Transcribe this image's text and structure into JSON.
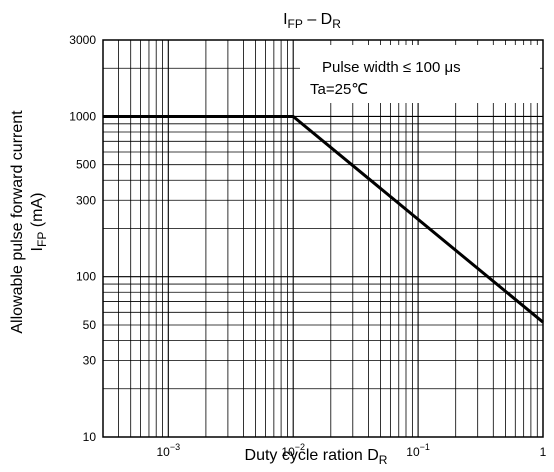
{
  "chart_data": {
    "type": "line",
    "title": "I_FP – D_R",
    "title_parts": {
      "main": "I",
      "sub": "FP",
      "tail": " – D",
      "tail_sub": "R"
    },
    "xlabel_parts": {
      "main": "Duty cycle ration D",
      "sub": "R"
    },
    "ylabel_line1": "Allowable pulse forward current",
    "ylabel_line2_parts": {
      "main": "I",
      "sub": "FP",
      "tail": " (mA)"
    },
    "x_scale": "log",
    "y_scale": "log",
    "xlim": [
      0.0003,
      1
    ],
    "ylim": [
      10,
      3000
    ],
    "x_ticks": [
      {
        "value": 0.001,
        "base": "10",
        "exp": "−3"
      },
      {
        "value": 0.01,
        "base": "10",
        "exp": "−2"
      },
      {
        "value": 0.1,
        "base": "10",
        "exp": "−1"
      },
      {
        "value": 1,
        "base": "1",
        "exp": ""
      }
    ],
    "y_ticks": [
      {
        "value": 10,
        "label": "10"
      },
      {
        "value": 30,
        "label": "30"
      },
      {
        "value": 50,
        "label": "50"
      },
      {
        "value": 100,
        "label": "100"
      },
      {
        "value": 300,
        "label": "300"
      },
      {
        "value": 500,
        "label": "500"
      },
      {
        "value": 1000,
        "label": "1000"
      },
      {
        "value": 3000,
        "label": "3000"
      }
    ],
    "grid": true,
    "annotation_line1": "Pulse width ≤ 100 μs",
    "annotation_line2": "Ta=25℃",
    "series": [
      {
        "x": [
          0.0003,
          0.01,
          1
        ],
        "y": [
          1000,
          1000,
          52
        ]
      }
    ],
    "series_color": "#000000"
  }
}
